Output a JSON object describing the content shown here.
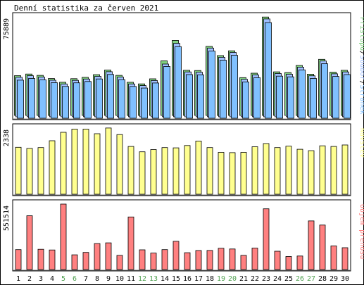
{
  "title": "Denní statistika za červen 2021",
  "colors": {
    "stranek": "#80c0ff",
    "soubor": "#a0c0ff",
    "pristupu": "#80d080",
    "navstev": "#ffff90",
    "objem": "#ff8080",
    "weekend_label": "#50a050",
    "weekday_label": "#000000",
    "background": "#ffffff",
    "panel_bg": "#ffffff",
    "axis": "#000000"
  },
  "chart_data": [
    {
      "type": "bar",
      "name": "hits",
      "ymax_label": "75889",
      "ymax": 75889,
      "legend": [
        "Stránek",
        "Soubor",
        "Přístupů"
      ],
      "legend_colors": [
        "#80c0ff",
        "#a0c0ff",
        "#80d080"
      ],
      "categories": [
        "1",
        "2",
        "3",
        "4",
        "5",
        "6",
        "7",
        "8",
        "9",
        "10",
        "11",
        "12",
        "13",
        "14",
        "15",
        "16",
        "17",
        "18",
        "19",
        "20",
        "21",
        "22",
        "23",
        "24",
        "25",
        "26",
        "27",
        "28",
        "29",
        "30"
      ],
      "weekend_days": [
        "5",
        "6",
        "12",
        "13",
        "19",
        "20",
        "26",
        "27"
      ],
      "series": [
        {
          "name": "Přístupů",
          "values": [
            29800,
            31000,
            30000,
            27600,
            24800,
            27500,
            28500,
            30500,
            34000,
            30000,
            24800,
            23600,
            27400,
            40900,
            56200,
            33800,
            33600,
            51700,
            44800,
            48400,
            28300,
            31600,
            73700,
            32600,
            32100,
            37400,
            30900,
            42000,
            32400,
            33800
          ]
        },
        {
          "name": "Soubor",
          "values": [
            29600,
            30800,
            29800,
            27400,
            24600,
            27300,
            28300,
            30300,
            33800,
            29800,
            24600,
            23400,
            27200,
            39500,
            55000,
            33600,
            33400,
            51500,
            44600,
            48200,
            28100,
            31400,
            73300,
            32400,
            31900,
            37200,
            30700,
            41800,
            32200,
            33600
          ]
        },
        {
          "name": "Stránek",
          "values": [
            28500,
            29800,
            28800,
            26600,
            23800,
            26500,
            27500,
            29400,
            32800,
            28900,
            23800,
            22600,
            26400,
            38800,
            53600,
            32700,
            32500,
            50300,
            43500,
            47100,
            27200,
            30400,
            71600,
            31500,
            31000,
            36200,
            29800,
            40800,
            31300,
            32700
          ]
        }
      ]
    },
    {
      "type": "bar",
      "name": "visits",
      "ymax_label": "2338",
      "ymax": 2338,
      "legend": [
        "Návštěv"
      ],
      "legend_colors": [
        "#ffff90"
      ],
      "categories": [
        "1",
        "2",
        "3",
        "4",
        "5",
        "6",
        "7",
        "8",
        "9",
        "10",
        "11",
        "12",
        "13",
        "14",
        "15",
        "16",
        "17",
        "18",
        "19",
        "20",
        "21",
        "22",
        "23",
        "24",
        "25",
        "26",
        "27",
        "28",
        "29",
        "30"
      ],
      "series": [
        {
          "name": "Návštěv",
          "values": [
            1660,
            1620,
            1650,
            1890,
            2190,
            2300,
            2300,
            2140,
            2340,
            2110,
            1690,
            1500,
            1580,
            1650,
            1640,
            1720,
            1880,
            1650,
            1480,
            1470,
            1480,
            1680,
            1790,
            1650,
            1700,
            1590,
            1540,
            1710,
            1690,
            1740
          ]
        }
      ]
    },
    {
      "type": "bar",
      "name": "traffic",
      "ymax_label": "551514",
      "ymax": 551514,
      "legend": [
        "Objem přenosu"
      ],
      "legend_colors": [
        "#ff8080"
      ],
      "categories": [
        "1",
        "2",
        "3",
        "4",
        "5",
        "6",
        "7",
        "8",
        "9",
        "10",
        "11",
        "12",
        "13",
        "14",
        "15",
        "16",
        "17",
        "18",
        "19",
        "20",
        "21",
        "22",
        "23",
        "24",
        "25",
        "26",
        "27",
        "28",
        "29",
        "30"
      ],
      "series": [
        {
          "name": "Objem přenosu",
          "values": [
            168000,
            453000,
            171000,
            165000,
            551514,
            124000,
            144000,
            219000,
            225000,
            119000,
            443000,
            166000,
            139000,
            168000,
            238000,
            142000,
            160000,
            161000,
            179000,
            173000,
            119000,
            181000,
            512000,
            154000,
            110000,
            114000,
            410000,
            375000,
            199000,
            184000
          ]
        }
      ]
    }
  ]
}
